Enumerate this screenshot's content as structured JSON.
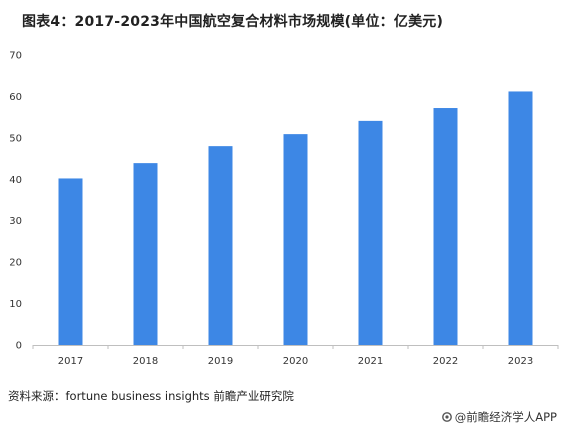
{
  "title": "图表4：2017-2023年中国航空复合材料市场规模(单位：亿美元)",
  "source": "资料来源：fortune business insights 前瞻产业研究院",
  "brand": "@前瞻经济学人APP",
  "colors": {
    "bar": "#3d87e5",
    "axis": "#bfbfbf",
    "text": "#333333"
  },
  "chart_data": {
    "type": "bar",
    "categories": [
      "2017",
      "2018",
      "2019",
      "2020",
      "2021",
      "2022",
      "2023"
    ],
    "values": [
      40.2,
      43.9,
      48.0,
      50.9,
      54.1,
      57.2,
      61.2
    ],
    "ylim": [
      0,
      70
    ],
    "yticks": [
      "0",
      "10",
      "20",
      "30",
      "40",
      "50",
      "60",
      "70"
    ],
    "grid": false,
    "legend": "none"
  }
}
